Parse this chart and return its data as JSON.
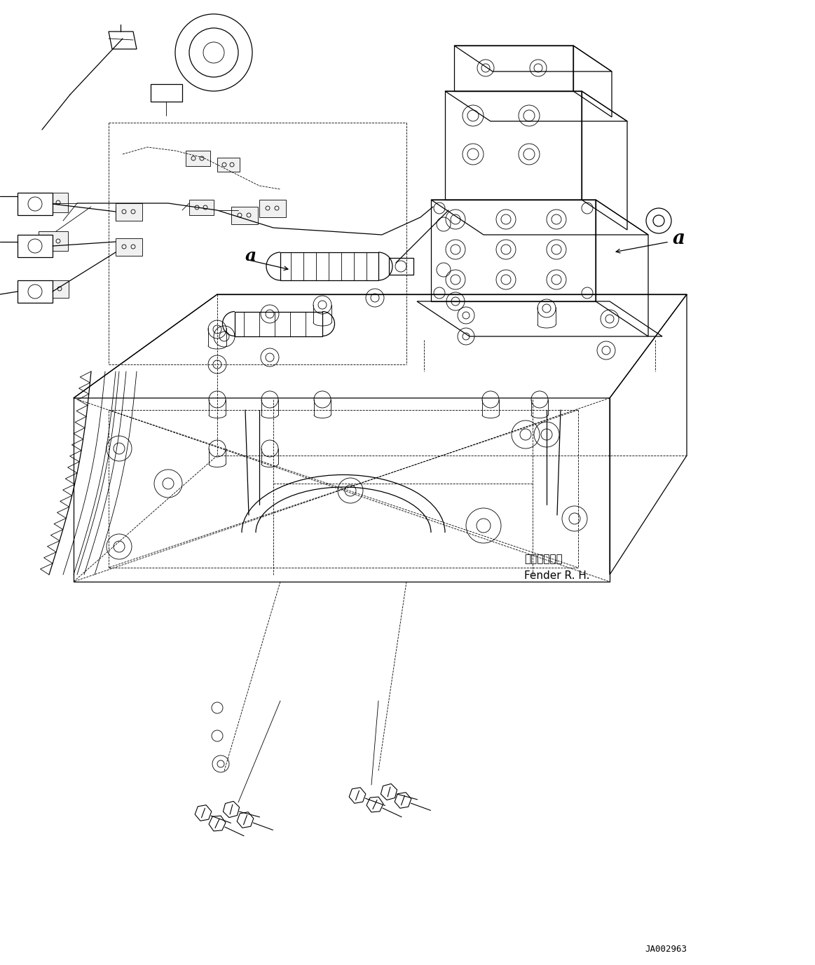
{
  "bg_color": "#ffffff",
  "lc": "#000000",
  "fig_w": 11.63,
  "fig_h": 13.77,
  "dpi": 100,
  "label_fender_jp": "フェンダ　右",
  "label_fender_en": "Fender R. H.",
  "code": "JA002963",
  "lw": 0.9,
  "lw_thin": 0.6,
  "lw_thick": 1.4
}
